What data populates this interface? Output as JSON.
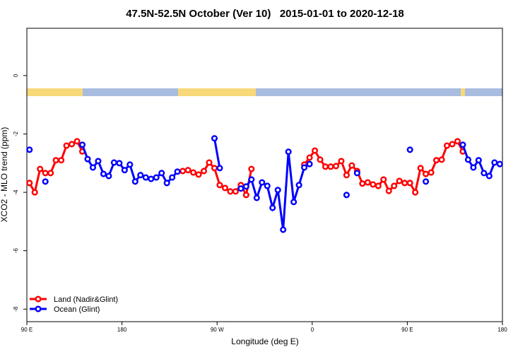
{
  "chart_data": {
    "type": "line",
    "title": "47.5N-52.5N October (Ver 10)   2015-01-01 to 2020-12-18",
    "x_label": "Longitude (deg E)",
    "y_label": "XCO2 - MLO trend (ppm)",
    "xlim": [
      90,
      540
    ],
    "ylim": [
      -8.43,
      1.62
    ],
    "xticks": [
      {
        "value": 90,
        "label": "90 E"
      },
      180,
      {
        "value": 270,
        "label": "90 W"
      },
      {
        "value": 360,
        "label": "0"
      },
      {
        "value": 450,
        "label": "90 E"
      },
      {
        "value": 540,
        "label": "180"
      }
    ],
    "yticks": [
      0,
      -2,
      -4,
      -6,
      -8
    ],
    "legend": "bottom-left",
    "x": [
      92.5,
      97.5,
      102.5,
      107.5,
      112.5,
      117.5,
      122.5,
      127.5,
      132.5,
      137.5,
      142.5,
      147.5,
      152.5,
      157.5,
      162.5,
      167.5,
      172.5,
      177.5,
      182.5,
      187.5,
      192.5,
      197.5,
      202.5,
      207.5,
      212.5,
      217.5,
      222.5,
      227.5,
      232.5,
      237.5,
      242.5,
      247.5,
      252.5,
      257.5,
      262.5,
      267.5,
      272.5,
      277.5,
      282.5,
      287.5,
      292.5,
      297.5,
      302.5,
      307.5,
      312.5,
      317.5,
      322.5,
      327.5,
      332.5,
      337.5,
      342.5,
      347.5,
      352.5,
      357.5,
      362.5,
      367.5,
      372.5,
      377.5,
      382.5,
      387.5,
      392.5,
      397.5,
      402.5,
      407.5,
      412.5,
      417.5,
      422.5,
      427.5,
      432.5,
      437.5,
      442.5,
      447.5,
      452.5,
      457.5,
      462.5,
      467.5,
      472.5,
      477.5,
      482.5,
      487.5,
      492.5,
      497.5,
      502.5,
      507.5,
      512.5,
      517.5,
      522.5,
      527.5,
      532.5,
      537.5
    ],
    "series": [
      {
        "name": "Land (Nadir&Glint)",
        "color": "#ff0000",
        "values": [
          -3.68,
          -4.0,
          -3.2,
          -3.34,
          -3.34,
          -2.9,
          -2.9,
          -2.4,
          -2.35,
          -2.25,
          -2.6,
          null,
          null,
          null,
          null,
          null,
          null,
          null,
          null,
          null,
          null,
          null,
          null,
          null,
          null,
          null,
          null,
          null,
          null,
          -3.27,
          -3.24,
          -3.32,
          -3.39,
          -3.27,
          -2.98,
          -3.17,
          -3.75,
          -3.85,
          -3.97,
          -3.97,
          -3.75,
          -4.09,
          -3.2,
          null,
          null,
          null,
          null,
          null,
          null,
          null,
          null,
          null,
          -3.05,
          -2.81,
          -2.57,
          -2.88,
          -3.12,
          -3.12,
          -3.1,
          -2.93,
          -3.41,
          -3.08,
          -3.27,
          -3.7,
          -3.66,
          -3.73,
          -3.78,
          -3.56,
          -3.95,
          -3.78,
          -3.61,
          -3.68,
          -3.68,
          -4.0,
          -3.17,
          -3.37,
          -3.32,
          -2.9,
          -2.88,
          -2.4,
          -2.35,
          -2.25,
          -2.6,
          null,
          null,
          null,
          null,
          null,
          null,
          null
        ]
      },
      {
        "name": "Ocean (Glint)",
        "color": "#0000ff",
        "values": [
          -2.54,
          null,
          null,
          -3.63,
          null,
          null,
          null,
          null,
          null,
          null,
          -2.37,
          -2.86,
          -3.15,
          -2.93,
          -3.37,
          -3.44,
          -2.98,
          -3.0,
          -3.24,
          -3.05,
          -3.63,
          -3.41,
          -3.49,
          -3.54,
          -3.49,
          -3.34,
          -3.68,
          -3.49,
          -3.29,
          null,
          null,
          null,
          null,
          null,
          null,
          -2.15,
          -3.17,
          null,
          null,
          null,
          -3.87,
          -3.8,
          -3.56,
          -4.19,
          -3.66,
          -3.78,
          -4.53,
          -3.92,
          -5.28,
          -2.61,
          -4.33,
          -3.75,
          -3.15,
          -3.03,
          null,
          null,
          null,
          null,
          null,
          null,
          -4.09,
          null,
          -3.34,
          null,
          null,
          null,
          null,
          null,
          null,
          null,
          null,
          null,
          -2.54,
          null,
          null,
          -3.63,
          null,
          null,
          null,
          null,
          null,
          null,
          -2.37,
          -2.88,
          -3.15,
          -2.9,
          -3.34,
          -3.44,
          -2.98,
          -3.03
        ]
      }
    ]
  }
}
